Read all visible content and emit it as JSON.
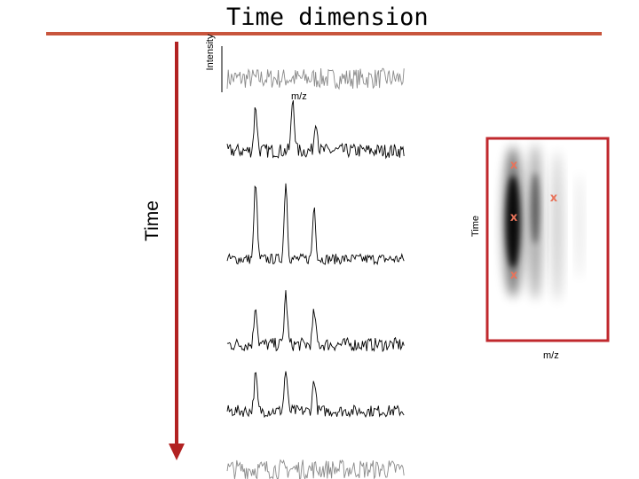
{
  "title": "Time dimension",
  "labels": {
    "intensity": "Intensity",
    "mz_top": "m/z",
    "time_axis": "Time",
    "time_map": "Time",
    "mz_map": "m/z"
  },
  "colors": {
    "rule": "#c8553d",
    "arrow": "#b22222",
    "map_frame": "#c0282d",
    "marker": "#e8735a",
    "trace": "#000000"
  },
  "spectra": [
    {
      "order": 1,
      "peaks": [],
      "noise": 0.55,
      "gray": true
    },
    {
      "order": 2,
      "peaks": [
        {
          "pos": 0.16,
          "h": 0.55
        },
        {
          "pos": 0.37,
          "h": 0.65
        },
        {
          "pos": 0.5,
          "h": 0.4
        }
      ],
      "noise": 0.5,
      "gray": false
    },
    {
      "order": 3,
      "peaks": [
        {
          "pos": 0.16,
          "h": 0.95
        },
        {
          "pos": 0.33,
          "h": 0.95
        },
        {
          "pos": 0.49,
          "h": 0.65
        }
      ],
      "noise": 0.35,
      "gray": false
    },
    {
      "order": 4,
      "peaks": [
        {
          "pos": 0.16,
          "h": 0.5
        },
        {
          "pos": 0.33,
          "h": 0.62
        },
        {
          "pos": 0.49,
          "h": 0.4
        }
      ],
      "noise": 0.45,
      "gray": false
    },
    {
      "order": 5,
      "peaks": [
        {
          "pos": 0.16,
          "h": 0.45
        },
        {
          "pos": 0.33,
          "h": 0.5
        },
        {
          "pos": 0.49,
          "h": 0.4
        }
      ],
      "noise": 0.45,
      "gray": false
    },
    {
      "order": 6,
      "peaks": [],
      "noise": 0.5,
      "gray": true
    }
  ]
}
